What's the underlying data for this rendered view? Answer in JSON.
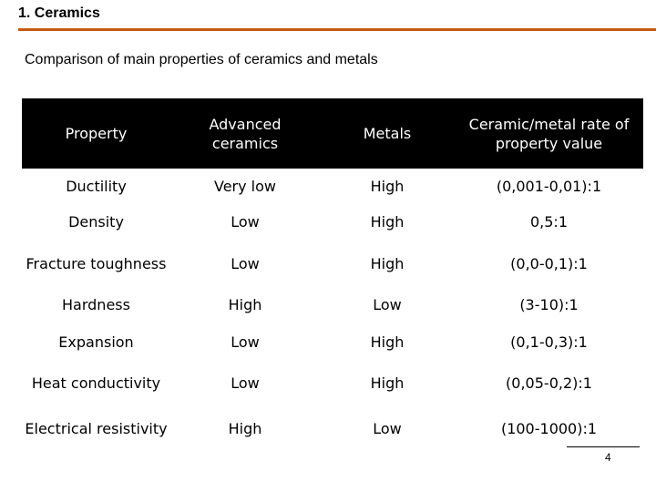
{
  "slide": {
    "title": "1. Ceramics",
    "subtitle": "Comparison of main properties of ceramics and metals",
    "page_number": "4",
    "accent_color": "#c55a11"
  },
  "table": {
    "headers": [
      "Property",
      "Advanced ceramics",
      "Metals",
      "Ceramic/metal rate of property value"
    ],
    "rows": [
      [
        "Ductility",
        "Very low",
        "High",
        "(0,001-0,01):1"
      ],
      [
        "Density",
        "Low",
        "High",
        "0,5:1"
      ],
      [
        "Fracture toughness",
        "Low",
        "High",
        "(0,0-0,1):1"
      ],
      [
        "Hardness",
        "High",
        "Low",
        "(3-10):1"
      ],
      [
        "Expansion",
        "Low",
        "High",
        "(0,1-0,3):1"
      ],
      [
        "Heat conductivity",
        "Low",
        "High",
        "(0,05-0,2):1"
      ],
      [
        "Electrical resistivity",
        "High",
        "Low",
        "(100-1000):1"
      ]
    ]
  }
}
